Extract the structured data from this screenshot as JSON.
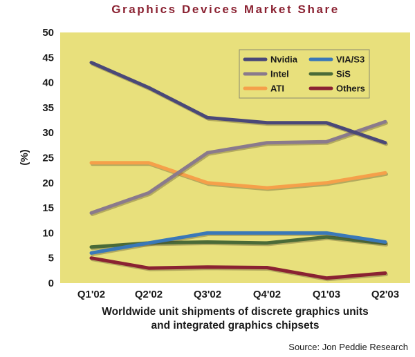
{
  "chart_data": {
    "type": "line",
    "title": "Graphics Devices Market Share",
    "xlabel": [
      "Worldwide unit shipments of discrete graphics units",
      "and integrated graphics chipsets"
    ],
    "ylabel": "(%)",
    "source": "Source: Jon Peddie Research",
    "categories": [
      "Q1'02",
      "Q2'02",
      "Q3'02",
      "Q4'02",
      "Q1'03",
      "Q2'03"
    ],
    "ylim": [
      0,
      50
    ],
    "yticks": [
      "0",
      "5",
      "10",
      "15",
      "20",
      "25",
      "30",
      "35",
      "40",
      "45",
      "50"
    ],
    "grid": false,
    "legend_position": "top-right",
    "plot_background": "#e8e07c",
    "series": [
      {
        "name": "Nvidia",
        "color": "#4a4878",
        "values": [
          44,
          39,
          33,
          32,
          32,
          28
        ]
      },
      {
        "name": "Intel",
        "color": "#8a7a8c",
        "values": [
          14,
          18,
          26,
          28,
          28.2,
          32.2
        ]
      },
      {
        "name": "ATI",
        "color": "#f5a04a",
        "values": [
          24,
          24,
          20,
          19,
          20,
          22
        ]
      },
      {
        "name": "VIA/S3",
        "color": "#3a78b8",
        "values": [
          6,
          8,
          10,
          10,
          10,
          8.2
        ]
      },
      {
        "name": "SiS",
        "color": "#4a6a38",
        "values": [
          7.2,
          8,
          8.2,
          8,
          9.2,
          7.9
        ]
      },
      {
        "name": "Others",
        "color": "#8a2232",
        "values": [
          5,
          3,
          3.2,
          3.1,
          1,
          2
        ]
      }
    ]
  }
}
